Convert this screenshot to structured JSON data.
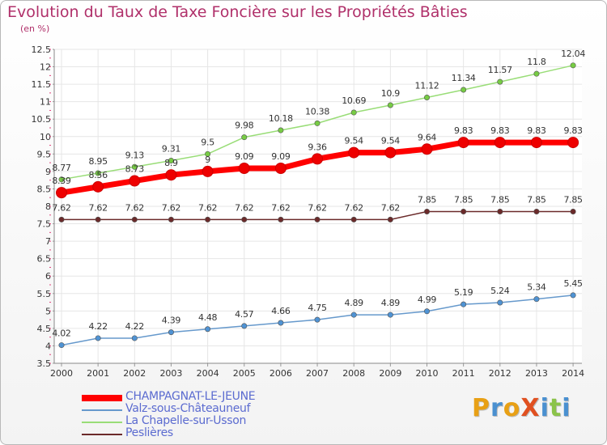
{
  "header": {
    "title": "Evolution du Taux de Taxe Foncière sur les Propriétés Bâties",
    "unit": "(en %)"
  },
  "logo": {
    "text": "ProXiti"
  },
  "chart_data": {
    "type": "line",
    "title": "Evolution du Taux de Taxe Foncière sur les Propriétés Bâties",
    "ylabel": "(en %)",
    "xlabel": "",
    "x": [
      "2000",
      "2001",
      "2002",
      "2003",
      "2004",
      "2005",
      "2006",
      "2007",
      "2008",
      "2009",
      "2010",
      "2011",
      "2012",
      "2013",
      "2014"
    ],
    "ylim": [
      3.5,
      12.5
    ],
    "yticks": [
      "3.5",
      "4",
      "4.5",
      "5",
      "5.5",
      "6",
      "6.5",
      "7",
      "7.5",
      "8",
      "8.5",
      "9",
      "9.5",
      "10",
      "10.5",
      "11",
      "11.5",
      "12",
      "12.5"
    ],
    "grid": true,
    "legend_position": "bottom-left",
    "series": [
      {
        "name": "CHAMPAGNAT-LE-JEUNE",
        "color": "#ff0000",
        "marker_color": "#ee0000",
        "emphasis": true,
        "values": [
          8.39,
          8.56,
          8.73,
          8.9,
          9,
          9.09,
          9.09,
          9.36,
          9.54,
          9.54,
          9.64,
          9.83,
          9.83,
          9.83,
          9.83
        ],
        "labels": [
          "8.39",
          "8.56",
          "8.73",
          "8.9",
          "9",
          "9.09",
          "9.09",
          "9.36",
          "9.54",
          "9.54",
          "9.64",
          "9.83",
          "9.83",
          "9.83",
          "9.83"
        ]
      },
      {
        "name": "Valz-sous-Châteauneuf",
        "color": "#6699cc",
        "marker_color": "#4f93d4",
        "values": [
          4.02,
          4.22,
          4.22,
          4.39,
          4.48,
          4.57,
          4.66,
          4.75,
          4.89,
          4.89,
          4.99,
          5.19,
          5.24,
          5.34,
          5.45
        ],
        "labels": [
          "4.02",
          "4.22",
          "4.22",
          "4.39",
          "4.48",
          "4.57",
          "4.66",
          "4.75",
          "4.89",
          "4.89",
          "4.99",
          "5.19",
          "5.24",
          "5.34",
          "5.45"
        ]
      },
      {
        "name": "La Chapelle-sur-Usson",
        "color": "#99dd77",
        "marker_color": "#77cc44",
        "values": [
          8.77,
          8.95,
          9.13,
          9.31,
          9.5,
          9.98,
          10.18,
          10.38,
          10.69,
          10.9,
          11.12,
          11.34,
          11.57,
          11.8,
          12.04
        ],
        "labels": [
          "8.77",
          "8.95",
          "9.13",
          "9.31",
          "9.5",
          "9.98",
          "10.18",
          "10.38",
          "10.69",
          "10.9",
          "11.12",
          "11.34",
          "11.57",
          "11.8",
          "12.04"
        ]
      },
      {
        "name": "Peslières",
        "color": "#6b2a2a",
        "marker_color": "#6b2a2a",
        "values": [
          7.62,
          7.62,
          7.62,
          7.62,
          7.62,
          7.62,
          7.62,
          7.62,
          7.62,
          7.62,
          7.85,
          7.85,
          7.85,
          7.85,
          7.85
        ],
        "labels": [
          "7.62",
          "7.62",
          "7.62",
          "7.62",
          "7.62",
          "7.62",
          "7.62",
          "7.62",
          "7.62",
          "7.62",
          "7.85",
          "7.85",
          "7.85",
          "7.85",
          "7.85"
        ]
      }
    ]
  }
}
